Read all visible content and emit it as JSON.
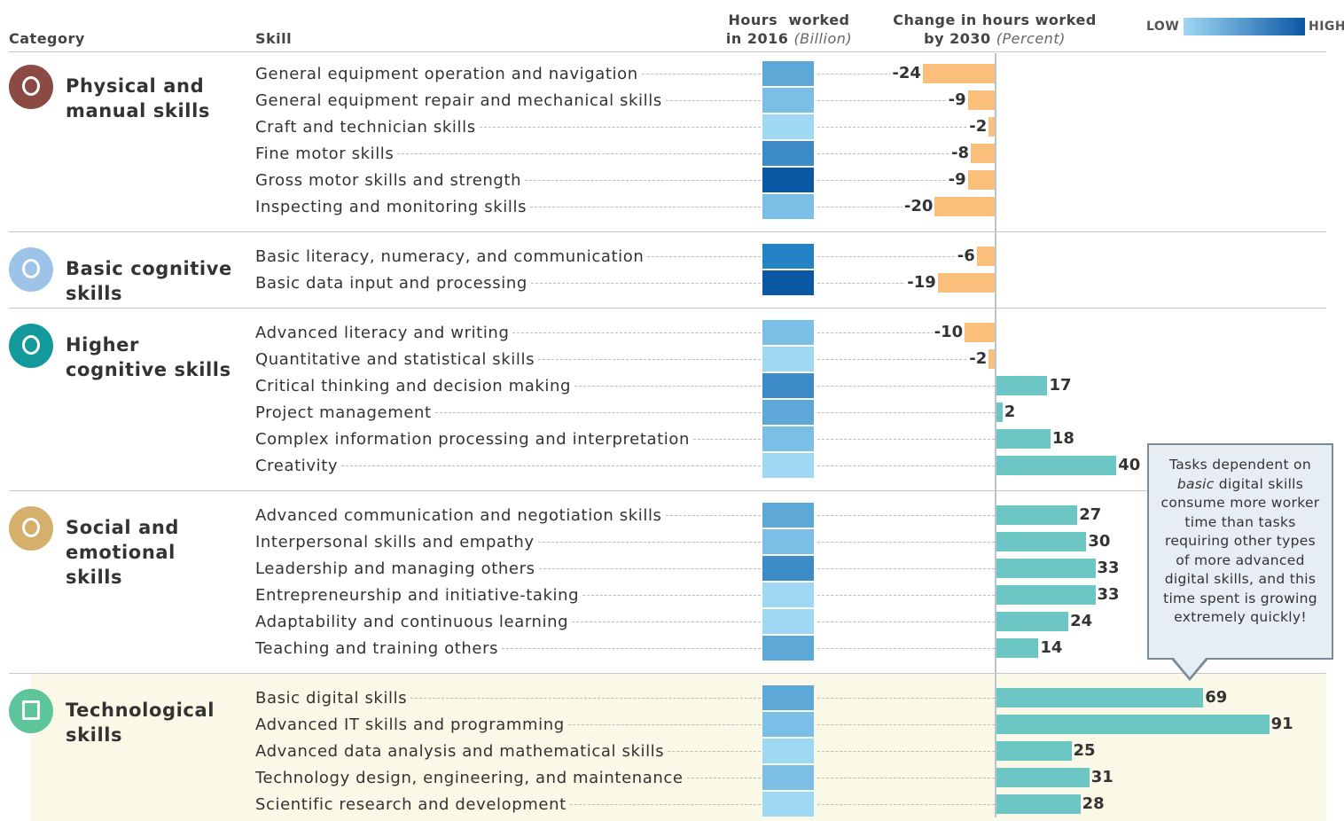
{
  "chart_data": {
    "type": "bar",
    "category_header": "Category",
    "skill_header": "Skill",
    "hours_title": [
      "Hours  worked",
      "in 2016"
    ],
    "hours_unit": "(Billion)",
    "change_title": [
      "Change in hours worked",
      "by 2030"
    ],
    "change_unit": "(Percent)",
    "legend_low": "LOW",
    "legend_high": "HIGH",
    "legend_gradient": [
      "#9ed8f3",
      "#0b57a4"
    ],
    "negative_color": "#fbbf7c",
    "positive_color": "#6cc7c4",
    "groups": [
      {
        "name": "Physical and manual skills",
        "color": "#8b4a44",
        "skills": [
          {
            "name": "General equipment operation and navigation",
            "value": -24,
            "heat": "#5ea8d8"
          },
          {
            "name": "General equipment repair  and mechanical skills",
            "value": -9,
            "heat": "#7cbfe6"
          },
          {
            "name": "Craft and technician skills",
            "value": -2,
            "heat": "#9ed8f3"
          },
          {
            "name": "Fine motor skills",
            "value": -8,
            "heat": "#3d8cc8"
          },
          {
            "name": "Gross motor skills and  strength",
            "value": -9,
            "heat": "#0b57a4"
          },
          {
            "name": "Inspecting and monitoring  skills",
            "value": -20,
            "heat": "#7cbfe6"
          }
        ]
      },
      {
        "name": "Basic cognitive skills",
        "color": "#9ec3e8",
        "skills": [
          {
            "name": "Basic literacy, numeracy,  and communication",
            "value": -6,
            "heat": "#2383c4"
          },
          {
            "name": "Basic data input and  processing",
            "value": -19,
            "heat": "#0b57a4"
          }
        ]
      },
      {
        "name": "Higher cognitive skills",
        "color": "#13999b",
        "skills": [
          {
            "name": "Advanced literacy and writing",
            "value": -10,
            "heat": "#7cbfe6"
          },
          {
            "name": "Quantitative and statistical  skills",
            "value": -2,
            "heat": "#9ed8f3"
          },
          {
            "name": "Critical thinking and  decision making",
            "value": 17,
            "heat": "#3d8cc8"
          },
          {
            "name": "Project management",
            "value": 2,
            "heat": "#5ea8d8"
          },
          {
            "name": "Complex information processing and interpretation",
            "value": 18,
            "heat": "#7cbfe6"
          },
          {
            "name": "Creativity",
            "value": 40,
            "heat": "#9ed8f3"
          }
        ]
      },
      {
        "name": "Social and emotional skills",
        "color": "#d4b06c",
        "skills": [
          {
            "name": "Advanced communication and negotiation skills",
            "value": 27,
            "heat": "#5ea8d8"
          },
          {
            "name": "Interpersonal skills and empathy",
            "value": 30,
            "heat": "#7cbfe6"
          },
          {
            "name": "Leadership and managing  others",
            "value": 33,
            "heat": "#3d8cc8"
          },
          {
            "name": "Entrepreneurship and initiative-taking",
            "value": 33,
            "heat": "#9ed8f3"
          },
          {
            "name": "Adaptability and continuous learning",
            "value": 24,
            "heat": "#9ed8f3"
          },
          {
            "name": "Teaching and training others",
            "value": 14,
            "heat": "#5ea8d8"
          }
        ]
      },
      {
        "name": "Technological skills",
        "color": "#5ec49a",
        "highlight": "#faf8e6",
        "skills": [
          {
            "name": "Basic digital skills",
            "value": 69,
            "heat": "#5ea8d8"
          },
          {
            "name": "Advanced IT skills and programming",
            "value": 91,
            "heat": "#7cbfe6"
          },
          {
            "name": "Advanced data analysis and mathematical skills",
            "value": 25,
            "heat": "#9ed8f3"
          },
          {
            "name": "Technology design, engineering, and maintenance",
            "value": 31,
            "heat": "#7cbfe6"
          },
          {
            "name": "Scientific research and development",
            "value": 28,
            "heat": "#9ed8f3"
          }
        ]
      }
    ],
    "callout": {
      "before": "Tasks dependent on ",
      "emphasis": "basic",
      "after": " digital skills consume more worker time than tasks requiring other types of more advanced digital skills, and this time spent is growing extremely quickly!"
    }
  }
}
